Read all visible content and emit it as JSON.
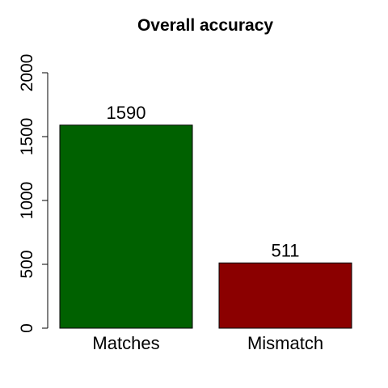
{
  "chart_data": {
    "type": "bar",
    "title": "Overall accuracy",
    "xlabel": "",
    "ylabel": "",
    "categories": [
      "Matches",
      "Mismatch"
    ],
    "values": [
      1590,
      511
    ],
    "value_labels": [
      "1590",
      "511"
    ],
    "colors": [
      "#006100",
      "#8B0000"
    ],
    "ylim": [
      0,
      2000
    ],
    "y_ticks": [
      0,
      500,
      1000,
      1500,
      2000
    ],
    "y_tick_labels": [
      "0",
      "500",
      "1000",
      "1500",
      "2000"
    ],
    "grid": false,
    "legend": "none"
  }
}
